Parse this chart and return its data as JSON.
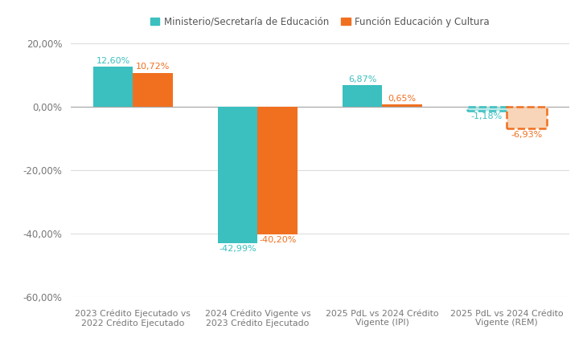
{
  "categories": [
    "2023 Crédito Ejecutado vs\n2022 Crédito Ejecutado",
    "2024 Crédito Vigente vs\n2023 Crédito Ejecutado",
    "2025 PdL vs 2024 Crédito\nVigente (IPI)",
    "2025 PdL vs 2024 Crédito\nVigente (REM)"
  ],
  "series": [
    {
      "name": "Ministerio/Secretaría de Educación",
      "values": [
        12.6,
        -42.99,
        6.87,
        -1.18
      ],
      "color": "#3bbfbf",
      "dashed": [
        false,
        false,
        false,
        true
      ]
    },
    {
      "name": "Función Educación y Cultura",
      "values": [
        10.72,
        -40.2,
        0.65,
        -6.93
      ],
      "color": "#f07020",
      "dashed": [
        false,
        false,
        false,
        true
      ]
    }
  ],
  "dashed_fill_colors": {
    "Ministerio/Secretaría de Educación": "#b8e8e8",
    "Función Educación y Cultura": "#f8d5b8"
  },
  "ylim": [
    -60,
    20
  ],
  "yticks": [
    -60,
    -40,
    -20,
    0,
    20
  ],
  "ytick_labels": [
    "-60,00%",
    "-40,00%",
    "-20,00%",
    "0,00%",
    "20,00%"
  ],
  "bar_width": 0.32,
  "background_color": "#ffffff",
  "grid_color": "#dddddd",
  "legend_items": [
    {
      "label": "Ministerio/Secretaría de Educación",
      "color": "#3bbfbf"
    },
    {
      "label": "Función Educación y Cultura",
      "color": "#f07020"
    }
  ]
}
